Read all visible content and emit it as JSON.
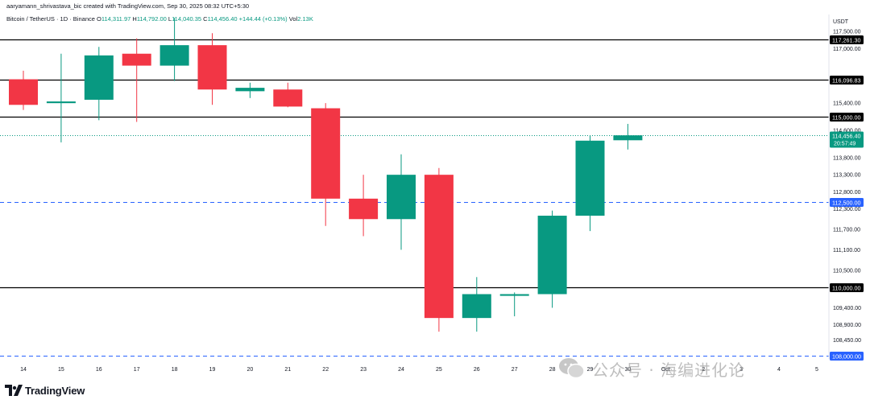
{
  "header": {
    "author_line": "aaryamann_shrivastava_bic created with TradingView.com, Sep 30, 2025 08:32 UTC+5:30",
    "symbol": "Bitcoin / TetherUS · 1D · Binance",
    "open_label": "O",
    "open": "114,311.97",
    "high_label": "H",
    "high": "114,792.00",
    "low_label": "L",
    "low": "114,040.35",
    "close_label": "C",
    "close": "114,456.40",
    "change": "+144.44 (+0.13%)",
    "vol_label": "Vol",
    "vol": "2.13K"
  },
  "brand": {
    "name": "TradingView"
  },
  "watermark": {
    "text": "公众号 · 海编进化论"
  },
  "colors": {
    "up": "#089981",
    "down": "#f23645",
    "level_line": "#000000",
    "dashed_line": "#2962ff",
    "current_price": "#089981"
  },
  "chart_data": {
    "type": "candlestick",
    "currency": "USDT",
    "x_ticks": [
      "14",
      "15",
      "16",
      "17",
      "18",
      "19",
      "20",
      "21",
      "22",
      "23",
      "24",
      "25",
      "26",
      "27",
      "28",
      "29",
      "30",
      "Oct",
      "2",
      "3",
      "4",
      "5"
    ],
    "y_ticks": [
      "117,500.00",
      "117,000.00",
      "115,400.00",
      "114,600.00",
      "113,800.00",
      "113,300.00",
      "112,800.00",
      "112,300.00",
      "111,700.00",
      "111,100.00",
      "110,500.00",
      "109,400.00",
      "108,900.00",
      "108,450.00"
    ],
    "y_range": [
      107900,
      118000
    ],
    "candles": [
      {
        "date": "14",
        "open": 116100,
        "high": 116350,
        "low": 115200,
        "close": 115350
      },
      {
        "date": "15",
        "open": 115400,
        "high": 116850,
        "low": 114250,
        "close": 115450
      },
      {
        "date": "16",
        "open": 115500,
        "high": 117050,
        "low": 114900,
        "close": 116800
      },
      {
        "date": "17",
        "open": 116850,
        "high": 117300,
        "low": 114850,
        "close": 116500
      },
      {
        "date": "18",
        "open": 116500,
        "high": 117900,
        "low": 116050,
        "close": 117100
      },
      {
        "date": "19",
        "open": 117100,
        "high": 117450,
        "low": 115350,
        "close": 115800
      },
      {
        "date": "20",
        "open": 115750,
        "high": 116000,
        "low": 115550,
        "close": 115850
      },
      {
        "date": "21",
        "open": 115800,
        "high": 116000,
        "low": 115280,
        "close": 115300
      },
      {
        "date": "22",
        "open": 115250,
        "high": 115400,
        "low": 111800,
        "close": 112600
      },
      {
        "date": "23",
        "open": 112600,
        "high": 113300,
        "low": 111500,
        "close": 112000
      },
      {
        "date": "24",
        "open": 112000,
        "high": 113900,
        "low": 111100,
        "close": 113300
      },
      {
        "date": "25",
        "open": 113300,
        "high": 113500,
        "low": 108700,
        "close": 109100
      },
      {
        "date": "26",
        "open": 109100,
        "high": 110300,
        "low": 108700,
        "close": 109800
      },
      {
        "date": "27",
        "open": 109750,
        "high": 109850,
        "low": 109150,
        "close": 109800
      },
      {
        "date": "28",
        "open": 109800,
        "high": 112250,
        "low": 109400,
        "close": 112100
      },
      {
        "date": "29",
        "open": 112100,
        "high": 114450,
        "low": 111650,
        "close": 114300
      },
      {
        "date": "30",
        "open": 114311.97,
        "high": 114792.0,
        "low": 114040.35,
        "close": 114456.4
      }
    ],
    "levels": [
      {
        "price": 117261.3,
        "label": "117,261.30",
        "style": "solid"
      },
      {
        "price": 116096.83,
        "label": "116,096.83",
        "style": "solid"
      },
      {
        "price": 115000.0,
        "label": "115,000.00",
        "style": "solid"
      },
      {
        "price": 112500.0,
        "label": "112,500.00",
        "style": "dashed"
      },
      {
        "price": 110000.0,
        "label": "110,000.00",
        "style": "solid"
      },
      {
        "price": 108000.0,
        "label": "108,000.00",
        "style": "dashed"
      }
    ],
    "current_price": {
      "price": 114456.4,
      "label": "114,456.40",
      "countdown": "20:57:49"
    },
    "grid": false
  }
}
